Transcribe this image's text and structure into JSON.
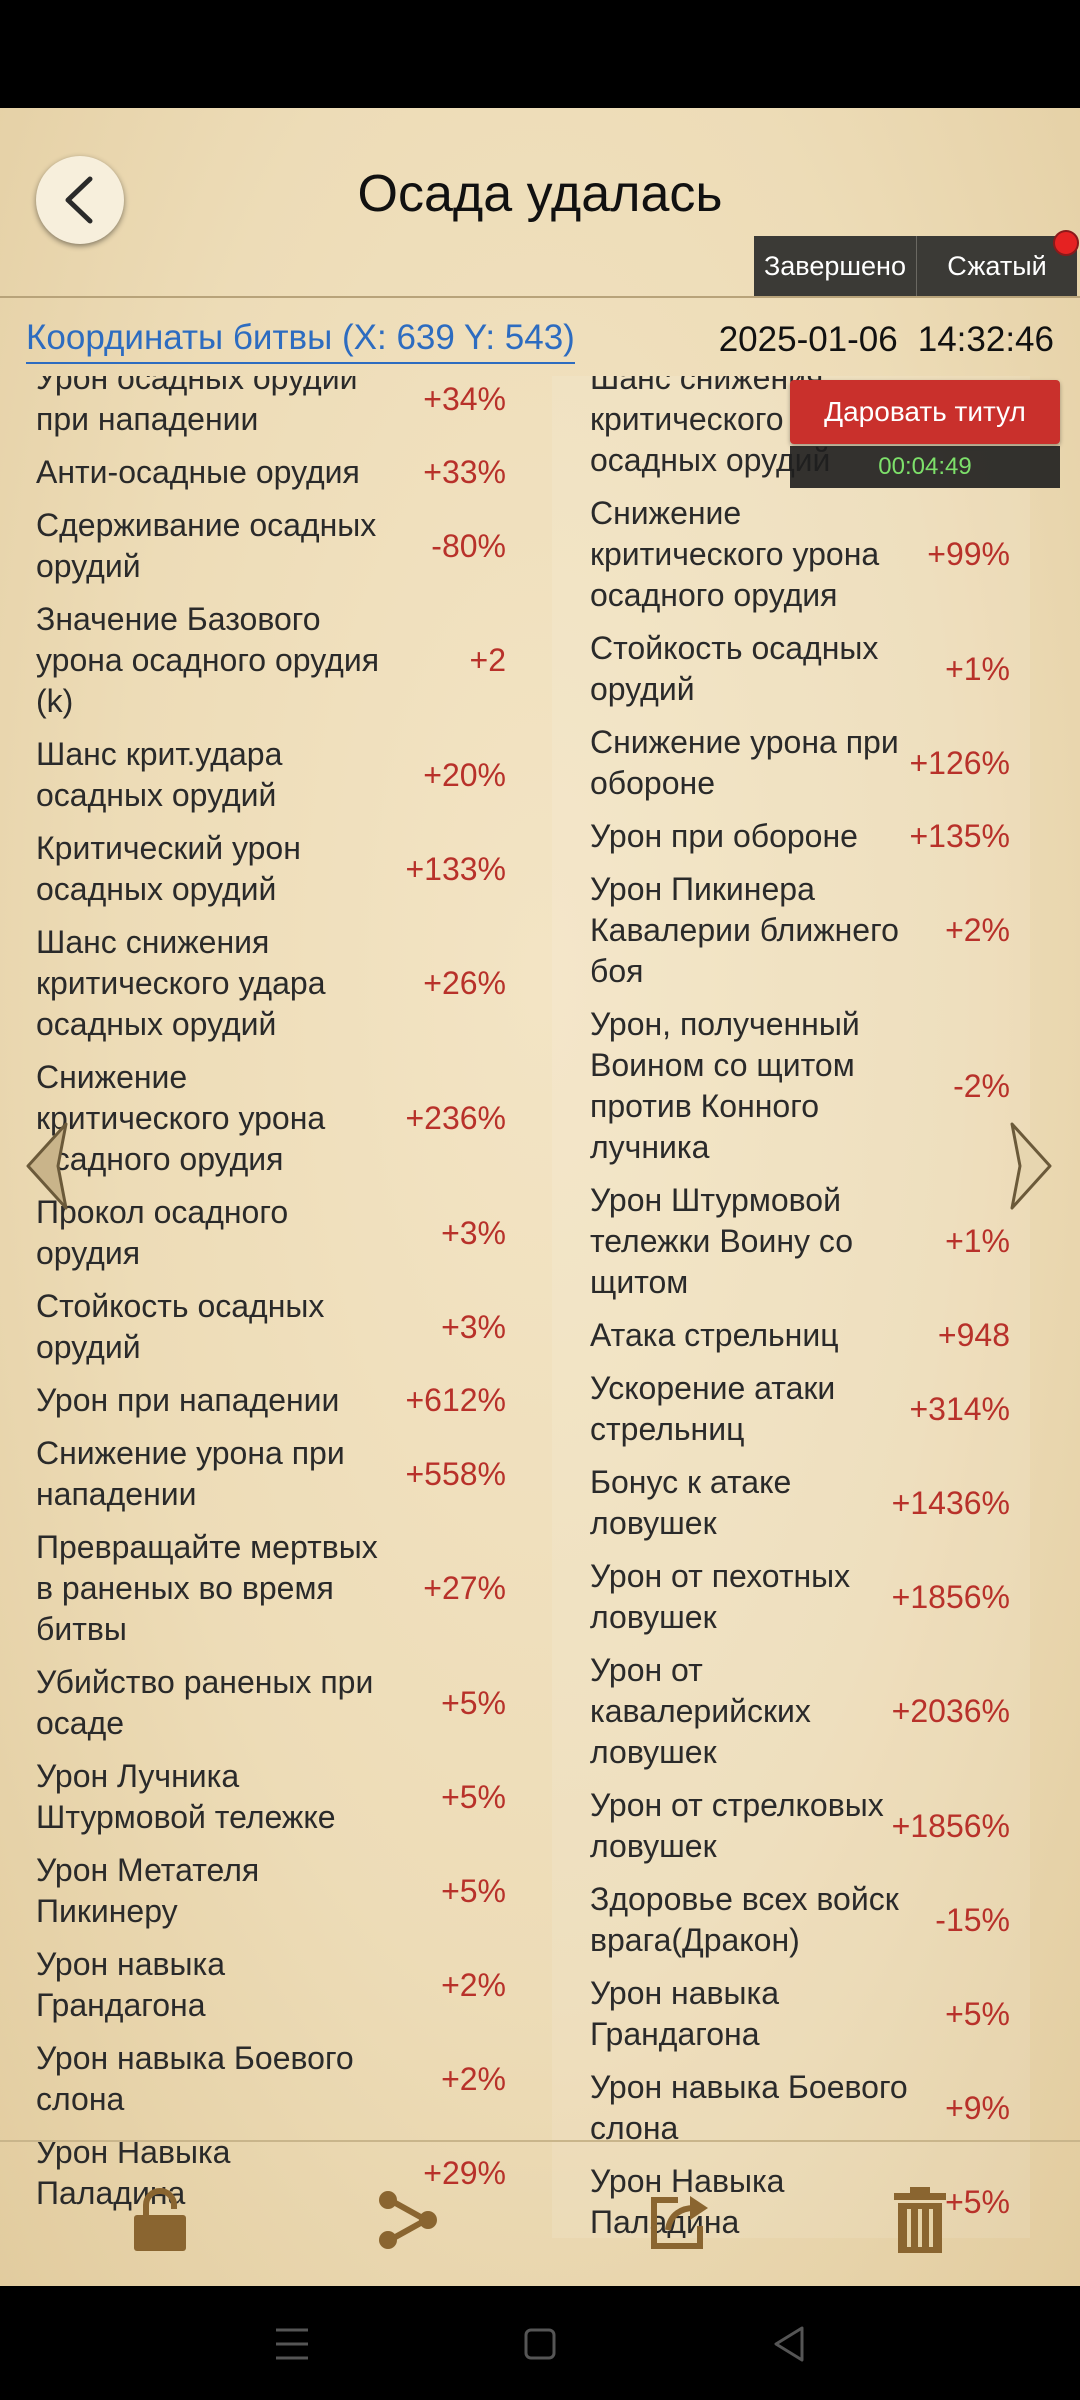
{
  "header": {
    "title": "Осада удалась",
    "done_label": "Завершено",
    "compact_label": "Сжатый"
  },
  "battle": {
    "coords": "Координаты битвы (X: 639 Y: 543)",
    "date": "2025-01-06",
    "time": "14:32:46"
  },
  "overlay": {
    "grant_label": "Даровать титул",
    "timer": "00:04:49"
  },
  "left_stats": [
    {
      "name": "Урон осадных орудии при нападении",
      "value": "+34%"
    },
    {
      "name": "Анти-осадные орудия",
      "value": "+33%"
    },
    {
      "name": "Сдерживание осадных орудий",
      "value": "-80%"
    },
    {
      "name": "Значение Базового урона осадного орудия (k)",
      "value": "+2"
    },
    {
      "name": "Шанс крит.удара осадных орудий",
      "value": "+20%"
    },
    {
      "name": "Критический урон осадных орудий",
      "value": "+133%"
    },
    {
      "name": "Шанс снижения критического удара осадных орудий",
      "value": "+26%"
    },
    {
      "name": "Снижение критического урона осадного орудия",
      "value": "+236%"
    },
    {
      "name": "Прокол осадного орудия",
      "value": "+3%"
    },
    {
      "name": "Стойкость осадных орудий",
      "value": "+3%"
    },
    {
      "name": "Урон при нападении",
      "value": "+612%"
    },
    {
      "name": "Снижение урона при нападении",
      "value": "+558%"
    },
    {
      "name": "Превращайте мертвых в раненых во время битвы",
      "value": "+27%"
    },
    {
      "name": "Убийство раненых при осаде",
      "value": "+5%"
    },
    {
      "name": "Урон Лучника Штурмовой тележке",
      "value": "+5%"
    },
    {
      "name": "Урон Метателя Пикинеру",
      "value": "+5%"
    },
    {
      "name": "Урон навыка Грандагона",
      "value": "+2%"
    },
    {
      "name": "Урон навыка Боевого слона",
      "value": "+2%"
    },
    {
      "name": "Урон Навыка Паладина",
      "value": "+29%"
    }
  ],
  "right_stats": [
    {
      "name": "Шанс снижения критического удара осадных орудий",
      "value": ""
    },
    {
      "name": "Снижение критического урона осадного орудия",
      "value": "+99%"
    },
    {
      "name": "Стойкость осадных орудий",
      "value": "+1%"
    },
    {
      "name": "Снижение урона при обороне",
      "value": "+126%"
    },
    {
      "name": "Урон при обороне",
      "value": "+135%"
    },
    {
      "name": "Урон Пикинера Кавалерии ближнего боя",
      "value": "+2%"
    },
    {
      "name": "Урон, полученный Воином со щитом против Конного лучника",
      "value": "-2%"
    },
    {
      "name": "Урон Штурмовой тележки Воину со щитом",
      "value": "+1%"
    },
    {
      "name": "Атака стрельниц",
      "value": "+948"
    },
    {
      "name": "Ускорение атаки стрельниц",
      "value": "+314%"
    },
    {
      "name": "Бонус к атаке ловушек",
      "value": "+1436%"
    },
    {
      "name": "Урон от пехотных ловушек",
      "value": "+1856%"
    },
    {
      "name": "Урон от кавалерийских ловушек",
      "value": "+2036%"
    },
    {
      "name": "Урон от стрелковых ловушек",
      "value": "+1856%"
    },
    {
      "name": "Здоровье всех войск врага(Дракон)",
      "value": "-15%"
    },
    {
      "name": "Урон навыка Грандагона",
      "value": "+5%"
    },
    {
      "name": "Урон навыка Боевого слона",
      "value": "+9%"
    },
    {
      "name": "Урон Навыка Паладина",
      "value": "+5%"
    }
  ],
  "icons": {
    "back": "chevron-left-icon",
    "lock": "lock-icon",
    "share": "share-icon",
    "export": "export-icon",
    "delete": "trash-icon"
  },
  "colors": {
    "value_red": "#b8312a",
    "link_blue": "#2d6cc0",
    "grant_red": "#c9302c",
    "timer_green": "#7de06a"
  }
}
